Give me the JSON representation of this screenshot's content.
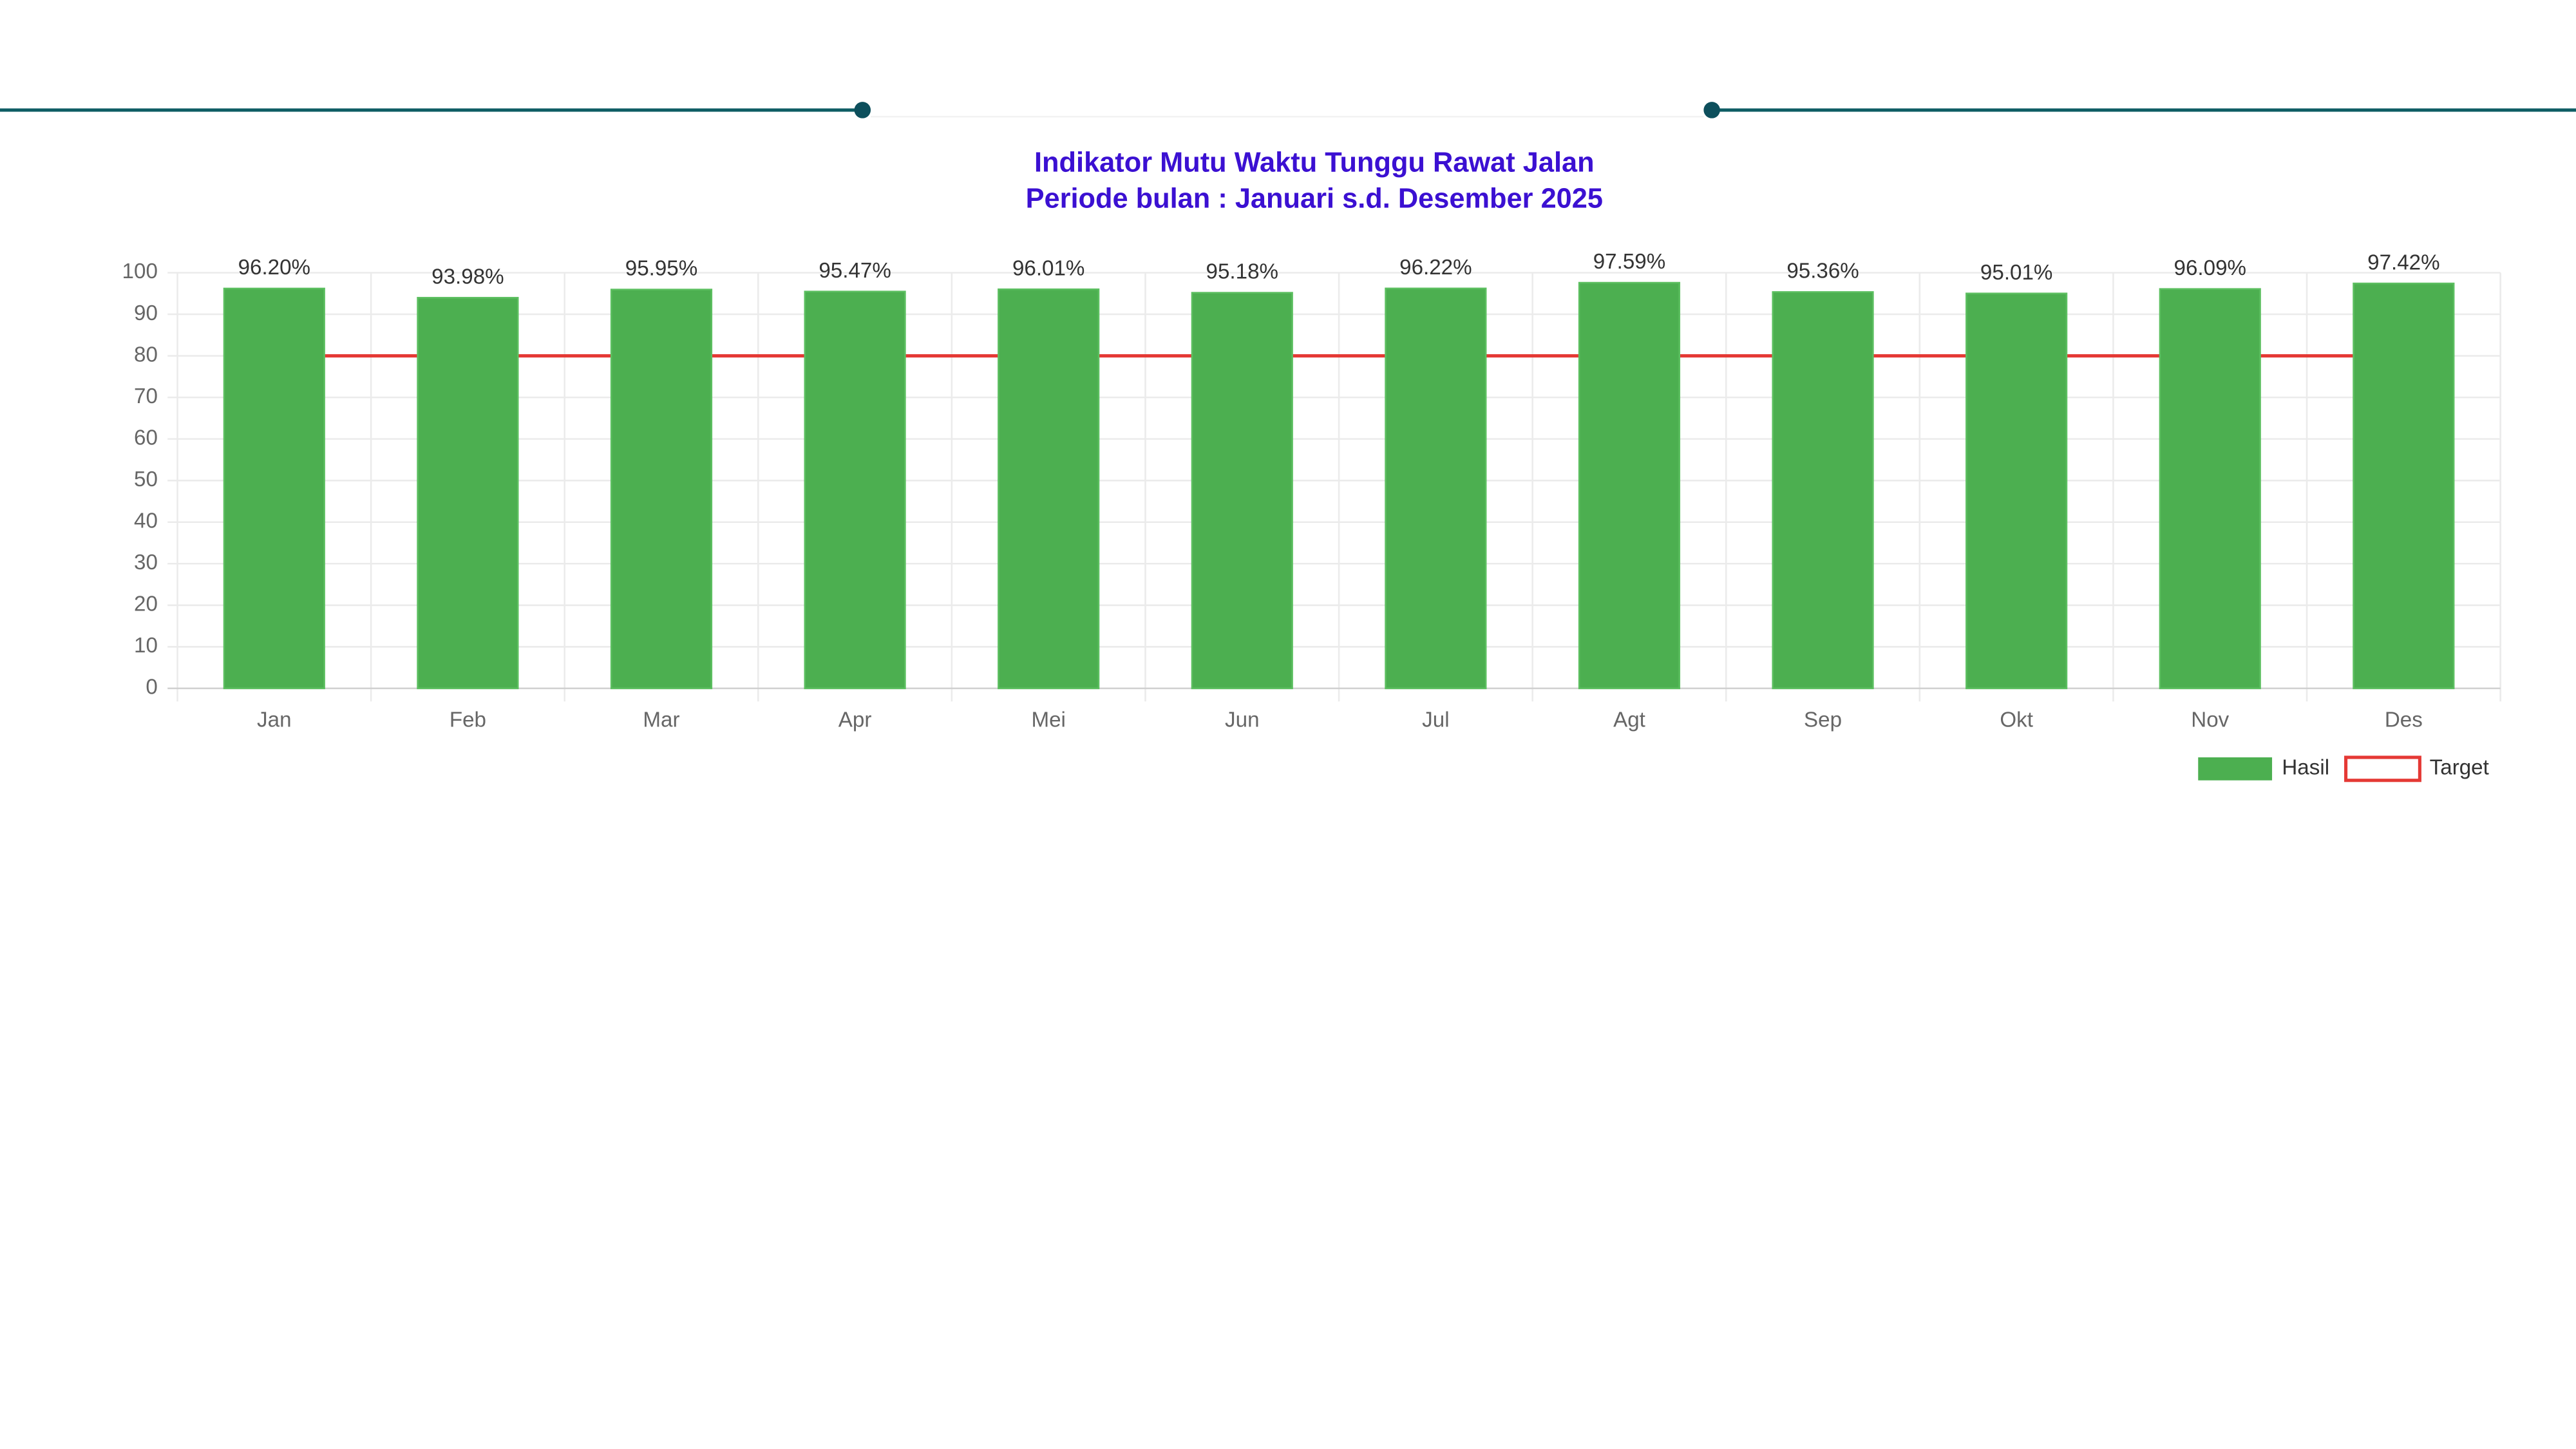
{
  "chart_data": {
    "type": "bar",
    "title": "Indikator Mutu Waktu Tunggu Rawat Jalan",
    "subtitle": "Periode bulan : Januari s.d. Desember 2025",
    "categories": [
      "Jan",
      "Feb",
      "Mar",
      "Apr",
      "Mei",
      "Jun",
      "Jul",
      "Agt",
      "Sep",
      "Okt",
      "Nov",
      "Des"
    ],
    "series": [
      {
        "name": "Hasil",
        "type": "bar",
        "color": "#4caf50",
        "values": [
          96.2,
          93.98,
          95.95,
          95.47,
          96.01,
          95.18,
          96.22,
          97.59,
          95.36,
          95.01,
          96.09,
          97.42
        ],
        "value_labels": [
          "96.20%",
          "93.98%",
          "95.95%",
          "95.47%",
          "96.01%",
          "95.18%",
          "96.22%",
          "97.59%",
          "95.36%",
          "95.01%",
          "96.09%",
          "97.42%"
        ]
      },
      {
        "name": "Target",
        "type": "line",
        "color": "#e53935",
        "values": [
          80,
          80,
          80,
          80,
          80,
          80,
          80,
          80,
          80,
          80,
          80,
          80
        ]
      }
    ],
    "ylim": [
      0,
      100
    ],
    "yticks": [
      0,
      10,
      20,
      30,
      40,
      50,
      60,
      70,
      80,
      90,
      100
    ],
    "grid": true,
    "legend": "bottom-right"
  }
}
